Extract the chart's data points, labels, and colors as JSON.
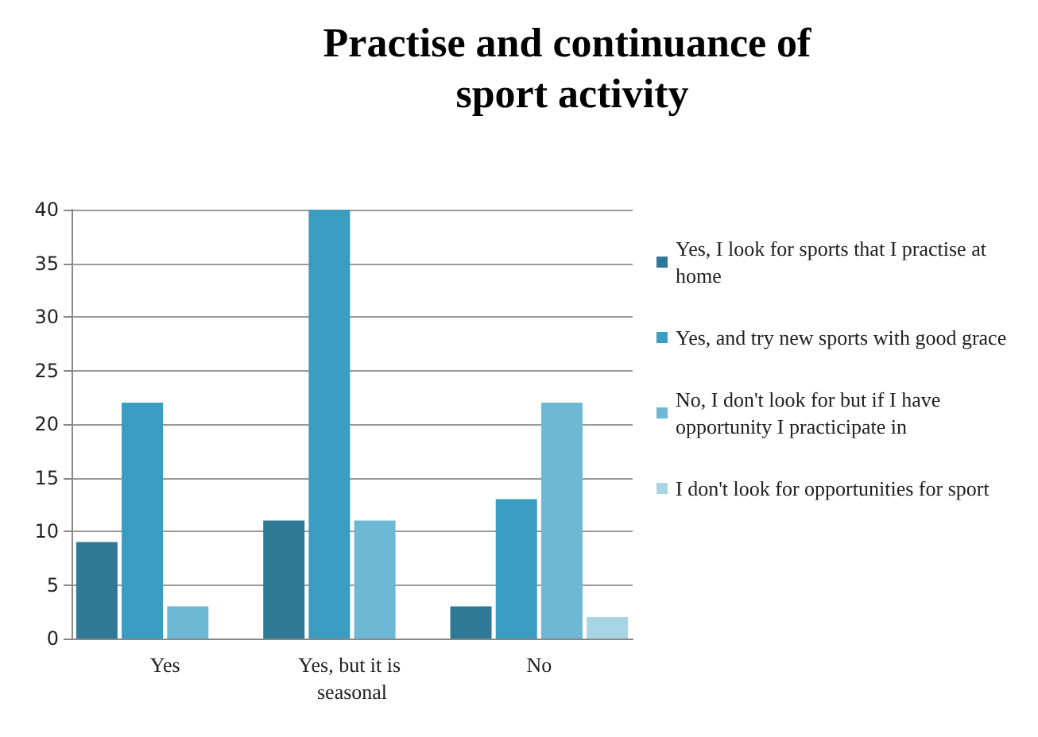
{
  "chart_data": {
    "type": "bar",
    "title": "Practise and continuance of sport activity",
    "categories": [
      "Yes",
      "Yes, but it is seasonal",
      "No"
    ],
    "series": [
      {
        "name": "Yes, I look for sports that I practise at home",
        "color": "#2e7a96",
        "values": [
          9,
          11,
          3
        ]
      },
      {
        "name": "Yes, and try new sports with good grace",
        "color": "#3a9cc0",
        "values": [
          22,
          40,
          13
        ]
      },
      {
        "name": "No, I don't look for but if I have opportunity I practicipate in",
        "color": "#6db8d4",
        "values": [
          3,
          11,
          22
        ]
      },
      {
        "name": "I don't look for opportunities for sport",
        "color": "#a8d5e5",
        "values": [
          0,
          0,
          2
        ]
      }
    ],
    "ylim": [
      0,
      40
    ],
    "yticks": [
      0,
      5,
      10,
      15,
      20,
      25,
      30,
      35,
      40
    ],
    "grid": "y",
    "legend": "right"
  }
}
